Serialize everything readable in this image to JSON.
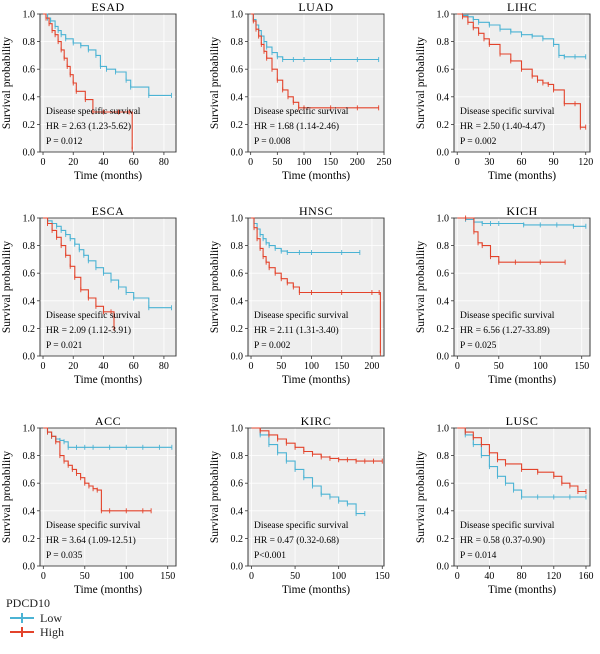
{
  "chart_data": [
    {
      "type": "line",
      "title": "ESAD",
      "xlabel": "Time (months)",
      "ylabel": "Survival probability",
      "xlim": [
        -2,
        88
      ],
      "xticks": [
        0,
        20,
        40,
        60,
        80
      ],
      "ylim": [
        0,
        1.0
      ],
      "yticks": [
        "0.0",
        "0.2",
        "0.4",
        "0.6",
        "0.8",
        "1.0"
      ],
      "annotation": [
        "Disease specific survival",
        "HR = 2.63 (1.23-5.62)",
        "P = 0.012"
      ],
      "series": [
        {
          "name": "Low",
          "x": [
            0,
            3,
            5,
            8,
            10,
            12,
            15,
            20,
            25,
            30,
            35,
            38,
            42,
            48,
            55,
            58,
            70,
            85
          ],
          "y": [
            1.0,
            0.97,
            0.95,
            0.91,
            0.88,
            0.85,
            0.82,
            0.79,
            0.77,
            0.74,
            0.7,
            0.62,
            0.6,
            0.58,
            0.52,
            0.47,
            0.41,
            0.41
          ]
        },
        {
          "name": "High",
          "x": [
            0,
            2,
            4,
            6,
            8,
            10,
            12,
            14,
            16,
            18,
            20,
            22,
            28,
            33,
            40,
            50,
            57,
            59
          ],
          "y": [
            1.0,
            0.97,
            0.93,
            0.88,
            0.85,
            0.8,
            0.74,
            0.68,
            0.62,
            0.56,
            0.5,
            0.44,
            0.38,
            0.29,
            0.29,
            0.29,
            0.29,
            0.02
          ]
        }
      ]
    },
    {
      "type": "line",
      "title": "LUAD",
      "xlabel": "Time (months)",
      "ylabel": "Survival probability",
      "xlim": [
        -5,
        250
      ],
      "xticks": [
        0,
        50,
        100,
        150,
        200,
        250
      ],
      "ylim": [
        0,
        1.0
      ],
      "yticks": [
        "0.0",
        "0.2",
        "0.4",
        "0.6",
        "0.8",
        "1.0"
      ],
      "annotation": [
        "Disease specific survival",
        "HR = 1.68 (1.14-2.46)",
        "P = 0.008"
      ],
      "series": [
        {
          "name": "Low",
          "x": [
            0,
            5,
            10,
            15,
            20,
            25,
            30,
            40,
            50,
            60,
            80,
            100,
            150,
            200,
            240
          ],
          "y": [
            1.0,
            0.96,
            0.92,
            0.88,
            0.84,
            0.8,
            0.76,
            0.72,
            0.69,
            0.67,
            0.67,
            0.67,
            0.67,
            0.67,
            0.67
          ]
        },
        {
          "name": "High",
          "x": [
            0,
            5,
            10,
            15,
            20,
            25,
            30,
            40,
            50,
            60,
            70,
            80,
            90,
            100,
            150,
            200,
            240
          ],
          "y": [
            1.0,
            0.95,
            0.89,
            0.84,
            0.78,
            0.73,
            0.68,
            0.6,
            0.52,
            0.45,
            0.4,
            0.36,
            0.32,
            0.32,
            0.32,
            0.32,
            0.32
          ]
        }
      ]
    },
    {
      "type": "line",
      "title": "LIHC",
      "xlabel": "Time (months)",
      "ylabel": "Survival probability",
      "xlim": [
        -3,
        124
      ],
      "xticks": [
        0,
        30,
        60,
        90,
        120
      ],
      "ylim": [
        0,
        1.0
      ],
      "yticks": [
        "0.0",
        "0.2",
        "0.4",
        "0.6",
        "0.8",
        "1.0"
      ],
      "annotation": [
        "Disease specific survival",
        "HR = 2.50 (1.40-4.47)",
        "P = 0.002"
      ],
      "series": [
        {
          "name": "Low",
          "x": [
            0,
            5,
            10,
            15,
            20,
            30,
            40,
            50,
            60,
            70,
            80,
            90,
            95,
            100,
            110,
            120
          ],
          "y": [
            1.0,
            0.99,
            0.98,
            0.96,
            0.94,
            0.92,
            0.89,
            0.87,
            0.85,
            0.84,
            0.82,
            0.78,
            0.7,
            0.69,
            0.69,
            0.69
          ]
        },
        {
          "name": "High",
          "x": [
            0,
            5,
            10,
            15,
            20,
            25,
            30,
            40,
            50,
            60,
            70,
            75,
            80,
            85,
            90,
            100,
            110,
            115,
            120
          ],
          "y": [
            1.0,
            0.98,
            0.94,
            0.9,
            0.86,
            0.82,
            0.78,
            0.71,
            0.66,
            0.6,
            0.55,
            0.52,
            0.5,
            0.49,
            0.45,
            0.35,
            0.35,
            0.18,
            0.18
          ]
        }
      ]
    },
    {
      "type": "line",
      "title": "ESCA",
      "xlabel": "Time (months)",
      "ylabel": "Survival probability",
      "xlim": [
        -2,
        88
      ],
      "xticks": [
        0,
        20,
        40,
        60,
        80
      ],
      "ylim": [
        0,
        1.0
      ],
      "yticks": [
        "0.0",
        "0.2",
        "0.4",
        "0.6",
        "0.8",
        "1.0"
      ],
      "annotation": [
        "Disease specific survival",
        "HR = 2.09 (1.12-3.91)",
        "P = 0.021"
      ],
      "series": [
        {
          "name": "Low",
          "x": [
            0,
            3,
            6,
            9,
            12,
            15,
            18,
            21,
            24,
            27,
            30,
            35,
            40,
            45,
            50,
            55,
            60,
            70,
            85
          ],
          "y": [
            1.0,
            0.98,
            0.96,
            0.94,
            0.91,
            0.88,
            0.85,
            0.81,
            0.77,
            0.73,
            0.69,
            0.64,
            0.6,
            0.55,
            0.5,
            0.46,
            0.42,
            0.35,
            0.35
          ]
        },
        {
          "name": "High",
          "x": [
            0,
            3,
            6,
            9,
            12,
            15,
            18,
            21,
            25,
            30,
            35,
            40,
            45,
            47
          ],
          "y": [
            1.0,
            0.96,
            0.91,
            0.86,
            0.8,
            0.73,
            0.65,
            0.57,
            0.48,
            0.42,
            0.36,
            0.32,
            0.32,
            0.2
          ]
        }
      ]
    },
    {
      "type": "line",
      "title": "HNSC",
      "xlabel": "Time (months)",
      "ylabel": "Survival probability",
      "xlim": [
        -5,
        220
      ],
      "xticks": [
        0,
        50,
        100,
        150,
        200
      ],
      "ylim": [
        0,
        1.0
      ],
      "yticks": [
        "0.0",
        "0.2",
        "0.4",
        "0.6",
        "0.8",
        "1.0"
      ],
      "annotation": [
        "Disease specific survival",
        "HR = 2.11 (1.31-3.40)",
        "P = 0.002"
      ],
      "series": [
        {
          "name": "Low",
          "x": [
            0,
            5,
            10,
            15,
            20,
            25,
            30,
            40,
            50,
            60,
            80,
            100,
            150,
            180
          ],
          "y": [
            1.0,
            0.96,
            0.92,
            0.88,
            0.85,
            0.82,
            0.8,
            0.78,
            0.76,
            0.75,
            0.75,
            0.75,
            0.75,
            0.75
          ]
        },
        {
          "name": "High",
          "x": [
            0,
            5,
            10,
            15,
            20,
            25,
            30,
            40,
            50,
            60,
            70,
            80,
            100,
            150,
            200,
            212,
            214
          ],
          "y": [
            1.0,
            0.93,
            0.85,
            0.78,
            0.72,
            0.68,
            0.64,
            0.6,
            0.56,
            0.53,
            0.5,
            0.46,
            0.46,
            0.46,
            0.46,
            0.46,
            0.02
          ]
        }
      ]
    },
    {
      "type": "line",
      "title": "KICH",
      "xlabel": "Time (months)",
      "ylabel": "Survival probability",
      "xlim": [
        -4,
        160
      ],
      "xticks": [
        0,
        50,
        100,
        150
      ],
      "ylim": [
        0,
        1.0
      ],
      "yticks": [
        "0.0",
        "0.2",
        "0.4",
        "0.6",
        "0.8",
        "1.0"
      ],
      "annotation": [
        "Disease specific survival",
        "HR = 6.56 (1.27-33.89)",
        "P = 0.025"
      ],
      "series": [
        {
          "name": "Low",
          "x": [
            0,
            10,
            20,
            30,
            40,
            50,
            80,
            100,
            120,
            140,
            155
          ],
          "y": [
            1.0,
            0.99,
            0.97,
            0.96,
            0.96,
            0.96,
            0.95,
            0.95,
            0.95,
            0.94,
            0.94
          ]
        },
        {
          "name": "High",
          "x": [
            0,
            10,
            20,
            25,
            30,
            40,
            50,
            70,
            100,
            130
          ],
          "y": [
            1.0,
            1.0,
            0.9,
            0.82,
            0.8,
            0.72,
            0.68,
            0.68,
            0.68,
            0.68
          ]
        }
      ]
    },
    {
      "type": "line",
      "title": "ACC",
      "xlabel": "Time (months)",
      "ylabel": "Survival probability",
      "xlim": [
        -4,
        160
      ],
      "xticks": [
        0,
        50,
        100,
        150
      ],
      "ylim": [
        0,
        1.0
      ],
      "yticks": [
        "0.0",
        "0.2",
        "0.4",
        "0.6",
        "0.8",
        "1.0"
      ],
      "annotation": [
        "Disease specific survival",
        "HR = 3.64 (1.09-12.51)",
        "P = 0.035"
      ],
      "series": [
        {
          "name": "Low",
          "x": [
            0,
            5,
            10,
            15,
            20,
            25,
            30,
            40,
            50,
            60,
            80,
            100,
            120,
            140,
            155
          ],
          "y": [
            1.0,
            0.97,
            0.94,
            0.92,
            0.91,
            0.9,
            0.86,
            0.86,
            0.86,
            0.86,
            0.86,
            0.86,
            0.86,
            0.86,
            0.86
          ]
        },
        {
          "name": "High",
          "x": [
            0,
            5,
            10,
            15,
            20,
            25,
            30,
            35,
            40,
            45,
            50,
            55,
            60,
            65,
            70,
            80,
            100,
            120,
            130
          ],
          "y": [
            1.0,
            0.97,
            0.94,
            0.9,
            0.8,
            0.76,
            0.73,
            0.7,
            0.67,
            0.64,
            0.6,
            0.58,
            0.56,
            0.55,
            0.4,
            0.4,
            0.4,
            0.4,
            0.4
          ]
        }
      ]
    },
    {
      "type": "line",
      "title": "KIRC",
      "xlabel": "Time (months)",
      "ylabel": "Survival probability",
      "xlim": [
        -4,
        152
      ],
      "xticks": [
        0,
        50,
        100,
        150
      ],
      "ylim": [
        0,
        1.0
      ],
      "yticks": [
        "0.0",
        "0.2",
        "0.4",
        "0.6",
        "0.8",
        "1.0"
      ],
      "annotation": [
        "Disease specific survival",
        "HR = 0.47 (0.32-0.68)",
        "P<0.001"
      ],
      "series": [
        {
          "name": "Low",
          "x": [
            0,
            10,
            20,
            30,
            40,
            50,
            60,
            70,
            80,
            90,
            100,
            110,
            120,
            130
          ],
          "y": [
            1.0,
            0.95,
            0.88,
            0.82,
            0.76,
            0.7,
            0.64,
            0.58,
            0.52,
            0.5,
            0.47,
            0.45,
            0.38,
            0.38
          ]
        },
        {
          "name": "High",
          "x": [
            0,
            10,
            20,
            30,
            40,
            50,
            60,
            70,
            80,
            90,
            100,
            110,
            120,
            130,
            140,
            150
          ],
          "y": [
            1.0,
            0.98,
            0.95,
            0.92,
            0.89,
            0.86,
            0.83,
            0.81,
            0.79,
            0.78,
            0.77,
            0.77,
            0.76,
            0.76,
            0.76,
            0.76
          ]
        }
      ]
    },
    {
      "type": "line",
      "title": "LUSC",
      "xlabel": "Time (months)",
      "ylabel": "Survival probability",
      "xlim": [
        -4,
        165
      ],
      "xticks": [
        0,
        40,
        80,
        120,
        160
      ],
      "ylim": [
        0,
        1.0
      ],
      "yticks": [
        "0.0",
        "0.2",
        "0.4",
        "0.6",
        "0.8",
        "1.0"
      ],
      "annotation": [
        "Disease specific survival",
        "HR = 0.58 (0.37-0.90)",
        "P = 0.014"
      ],
      "series": [
        {
          "name": "Low",
          "x": [
            0,
            10,
            20,
            30,
            40,
            50,
            60,
            70,
            80,
            100,
            120,
            140,
            160
          ],
          "y": [
            1.0,
            0.95,
            0.88,
            0.8,
            0.72,
            0.65,
            0.6,
            0.55,
            0.5,
            0.5,
            0.5,
            0.5,
            0.5
          ]
        },
        {
          "name": "High",
          "x": [
            0,
            10,
            20,
            30,
            40,
            50,
            60,
            80,
            100,
            120,
            130,
            140,
            150,
            160
          ],
          "y": [
            1.0,
            0.97,
            0.93,
            0.88,
            0.82,
            0.77,
            0.74,
            0.7,
            0.68,
            0.65,
            0.6,
            0.58,
            0.54,
            0.54
          ]
        }
      ]
    }
  ],
  "legend": {
    "title": "PDCD10",
    "items": [
      {
        "label": "Low",
        "color": "#4bb3d4"
      },
      {
        "label": "High",
        "color": "#e3432b"
      }
    ]
  },
  "colors": {
    "Low": "#4bb3d4",
    "High": "#e3432b",
    "panel_bg": "#eeeeee",
    "grid": "#ffffff"
  }
}
